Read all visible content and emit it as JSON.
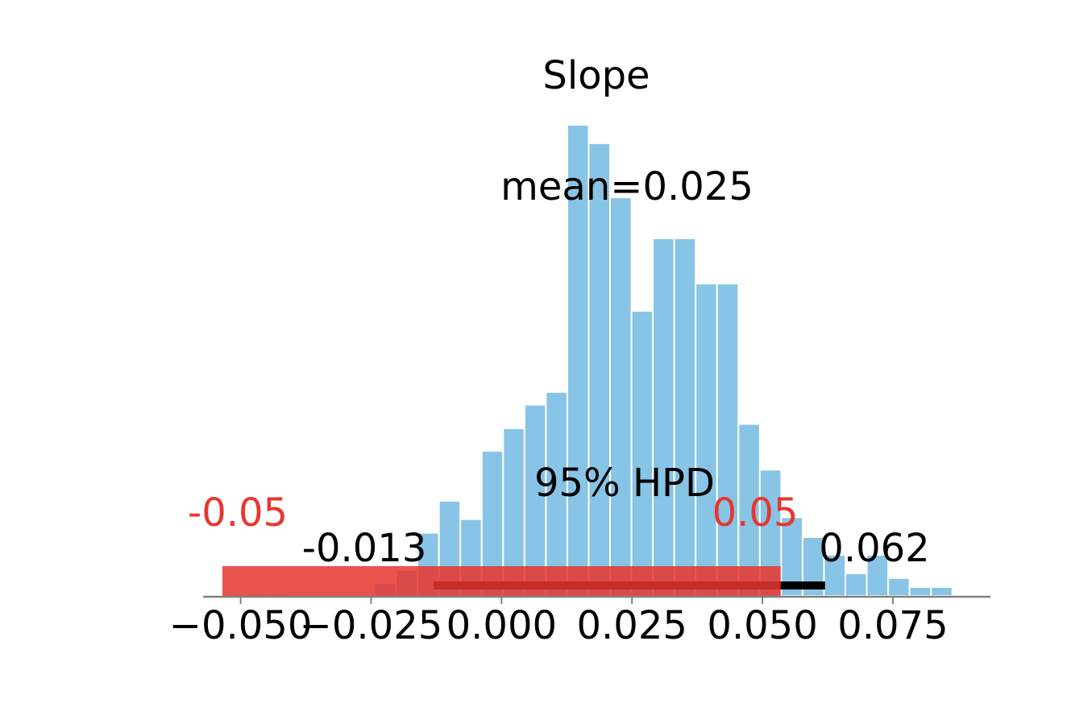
{
  "chart_data": {
    "type": "bar",
    "title": "Slope",
    "xlabel": "",
    "ylabel": "",
    "xlim": [
      -0.0572,
      0.0937
    ],
    "ylim": [
      0,
      100
    ],
    "grid": false,
    "bin_width": 0.0041,
    "bins": [
      {
        "x0": -0.0489,
        "x1": -0.0448,
        "y": 0.5
      },
      {
        "x0": -0.0448,
        "x1": -0.0407,
        "y": 0.5
      },
      {
        "x0": -0.0243,
        "x1": -0.0202,
        "y": 2.7
      },
      {
        "x0": -0.0202,
        "x1": -0.0161,
        "y": 5.5
      },
      {
        "x0": -0.0161,
        "x1": -0.012,
        "y": 13.4
      },
      {
        "x0": -0.012,
        "x1": -0.0079,
        "y": 20.2
      },
      {
        "x0": -0.0079,
        "x1": -0.0038,
        "y": 16.3
      },
      {
        "x0": -0.0038,
        "x1": 0.0003,
        "y": 30.8
      },
      {
        "x0": 0.0003,
        "x1": 0.0044,
        "y": 35.6
      },
      {
        "x0": 0.0044,
        "x1": 0.0085,
        "y": 40.6
      },
      {
        "x0": 0.0085,
        "x1": 0.0126,
        "y": 43.3
      },
      {
        "x0": 0.0126,
        "x1": 0.0167,
        "y": 100.0
      },
      {
        "x0": 0.0167,
        "x1": 0.0208,
        "y": 96.1
      },
      {
        "x0": 0.0208,
        "x1": 0.0249,
        "y": 84.6
      },
      {
        "x0": 0.0249,
        "x1": 0.029,
        "y": 60.5
      },
      {
        "x0": 0.029,
        "x1": 0.0331,
        "y": 75.9
      },
      {
        "x0": 0.0331,
        "x1": 0.0372,
        "y": 75.9
      },
      {
        "x0": 0.0372,
        "x1": 0.0413,
        "y": 66.3
      },
      {
        "x0": 0.0413,
        "x1": 0.0454,
        "y": 66.3
      },
      {
        "x0": 0.0454,
        "x1": 0.0495,
        "y": 36.5
      },
      {
        "x0": 0.0495,
        "x1": 0.0536,
        "y": 26.8
      },
      {
        "x0": 0.0536,
        "x1": 0.0577,
        "y": 16.7
      },
      {
        "x0": 0.0577,
        "x1": 0.0618,
        "y": 12.5
      },
      {
        "x0": 0.0618,
        "x1": 0.0659,
        "y": 8.7
      },
      {
        "x0": 0.0659,
        "x1": 0.07,
        "y": 4.8
      },
      {
        "x0": 0.07,
        "x1": 0.0741,
        "y": 8.7
      },
      {
        "x0": 0.0741,
        "x1": 0.0782,
        "y": 3.8
      },
      {
        "x0": 0.0782,
        "x1": 0.0823,
        "y": 1.9
      },
      {
        "x0": 0.0823,
        "x1": 0.0864,
        "y": 1.9
      }
    ],
    "x_ticks": [
      {
        "value": -0.05,
        "label": "−0.050"
      },
      {
        "value": -0.025,
        "label": "−0.025"
      },
      {
        "value": 0.0,
        "label": "0.000"
      },
      {
        "value": 0.025,
        "label": "0.025"
      },
      {
        "value": 0.05,
        "label": "0.050"
      },
      {
        "value": 0.075,
        "label": "0.075"
      }
    ],
    "mean_label": "mean=0.025",
    "hpd": {
      "label": "95% HPD",
      "low": -0.013,
      "high": 0.062,
      "low_label": "-0.013",
      "high_label": "0.062"
    },
    "rope": {
      "low": -0.0535,
      "high": 0.0535,
      "low_label": "-0.05",
      "high_label": "0.05",
      "color": "#e8352e"
    },
    "colors": {
      "bars": "#87c4e5",
      "bar_edge": "#ffffff",
      "hpd_line": "#000000",
      "axis": "#808080",
      "text": "#000000"
    }
  }
}
